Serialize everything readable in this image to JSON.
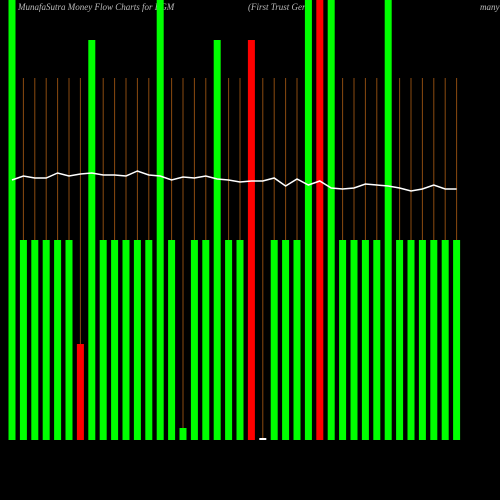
{
  "chart_data": {
    "type": "bar",
    "title": "MunafaSutra  Money Flow  Charts for FGM",
    "subtitle": "(First Trust Ger",
    "subtitle_end": "many",
    "categories": [
      null,
      null,
      null,
      null,
      null,
      null,
      null,
      null,
      null,
      null,
      null,
      null,
      null,
      null,
      null,
      null,
      null,
      null,
      null,
      null,
      null,
      null,
      null,
      null,
      null,
      null,
      null,
      null,
      null,
      null,
      null,
      null,
      null,
      null,
      null,
      null,
      null,
      null,
      null,
      null
    ],
    "series": [
      {
        "values": [
          110,
          50,
          50,
          50,
          50,
          50,
          24,
          100,
          50,
          50,
          50,
          50,
          50,
          110,
          50,
          3,
          50,
          50,
          100,
          50,
          50,
          100,
          0.5,
          50,
          50,
          50,
          110,
          110,
          110,
          50,
          50,
          50,
          50,
          110,
          50,
          50,
          50,
          50,
          50,
          50
        ],
        "colors": [
          "#00ff00",
          "#00ff00",
          "#00ff00",
          "#00ff00",
          "#00ff00",
          "#00ff00",
          "#ff0000",
          "#00ff00",
          "#00ff00",
          "#00ff00",
          "#00ff00",
          "#00ff00",
          "#00ff00",
          "#00ff00",
          "#00ff00",
          "#00ff00",
          "#00ff00",
          "#00ff00",
          "#00ff00",
          "#00ff00",
          "#00ff00",
          "#ff0000",
          "#ffffff",
          "#00ff00",
          "#00ff00",
          "#00ff00",
          "#00ff00",
          "#ff0000",
          "#00ff00",
          "#00ff00",
          "#00ff00",
          "#00ff00",
          "#00ff00",
          "#00ff00",
          "#00ff00",
          "#00ff00",
          "#00ff00",
          "#00ff00",
          "#00ff00",
          "#00ff00"
        ]
      },
      {
        "type": "line",
        "color": "#ffffff",
        "values": [
          65,
          66,
          65.5,
          65.5,
          66.75,
          66,
          66.5,
          66.75,
          66.25,
          66.25,
          66,
          67.25,
          66.25,
          66,
          65,
          65.75,
          65.5,
          66,
          65.25,
          65,
          64.5,
          64.75,
          64.75,
          65.5,
          63.5,
          65.25,
          63.75,
          64.75,
          63,
          62.75,
          63,
          64,
          63.75,
          63.5,
          63,
          62.25,
          62.75,
          63.75,
          62.75,
          62.75
        ]
      }
    ],
    "ylim": [
      0,
      110
    ]
  }
}
